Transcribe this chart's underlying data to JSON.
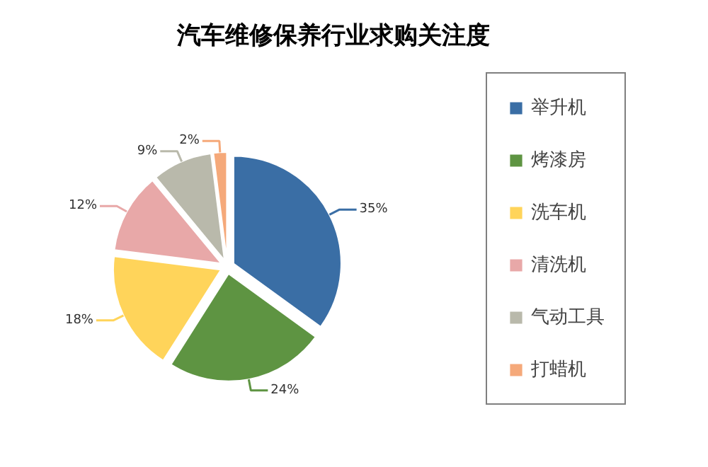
{
  "chart_data": {
    "type": "pie",
    "title": "汽车维修保养行业求购关注度",
    "categories": [
      "举升机",
      "烤漆房",
      "洗车机",
      "清洗机",
      "气动工具",
      "打蜡机"
    ],
    "values": [
      35,
      24,
      18,
      12,
      9,
      2
    ],
    "colors": [
      "#3a6ea5",
      "#5e9442",
      "#ffd45a",
      "#e8a8a8",
      "#b9b9ab",
      "#f5a97a"
    ],
    "value_labels": [
      "35%",
      "24%",
      "18%",
      "12%",
      "9%",
      "2%"
    ],
    "legend": "right"
  }
}
